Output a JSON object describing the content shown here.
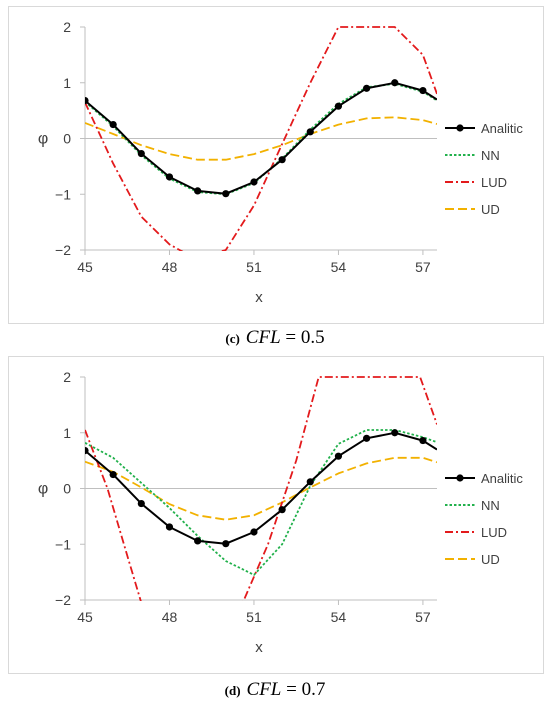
{
  "chart_data": [
    {
      "type": "line",
      "caption": {
        "tag": "(c)",
        "var": "CFL",
        "eq": " = 0.5"
      },
      "xlabel": "x",
      "ylabel": "φ",
      "xlim": [
        45,
        57.5
      ],
      "ylim": [
        -2,
        2
      ],
      "xticks": [
        "45",
        "48",
        "51",
        "54",
        "57"
      ],
      "yticks": [
        "2",
        "1",
        "0",
        "−1",
        "−2"
      ],
      "grid": false,
      "legend": "right",
      "series": [
        {
          "name": "Analitic",
          "color": "#000000",
          "style": "solid-markers",
          "x": [
            45,
            46,
            47,
            48,
            49,
            50,
            51,
            52,
            53,
            54,
            55,
            56,
            57,
            57.5
          ],
          "y": [
            0.68,
            0.25,
            -0.27,
            -0.69,
            -0.94,
            -0.99,
            -0.78,
            -0.38,
            0.12,
            0.58,
            0.9,
            1.0,
            0.86,
            0.7
          ]
        },
        {
          "name": "NN",
          "color": "#22b14c",
          "style": "dotted",
          "x": [
            45,
            46,
            47,
            48,
            49,
            50,
            51,
            52,
            53,
            54,
            55,
            56,
            57,
            57.5
          ],
          "y": [
            0.66,
            0.22,
            -0.3,
            -0.72,
            -0.96,
            -1.0,
            -0.8,
            -0.36,
            0.16,
            0.62,
            0.92,
            0.98,
            0.84,
            0.68
          ]
        },
        {
          "name": "LUD",
          "color": "#e31a1c",
          "style": "dashdot",
          "x": [
            45,
            46,
            47,
            48,
            48.9,
            50,
            51,
            52,
            53,
            54.0,
            56.0,
            57,
            57.5
          ],
          "y": [
            0.65,
            -0.45,
            -1.4,
            -1.9,
            -2.15,
            -2.0,
            -1.2,
            -0.1,
            1.0,
            2.0,
            2.0,
            1.5,
            0.8
          ]
        },
        {
          "name": "UD",
          "color": "#f2b100",
          "style": "dashed",
          "x": [
            45,
            46,
            47,
            48,
            49,
            50,
            51,
            52,
            53,
            54,
            55,
            56,
            57,
            57.5
          ],
          "y": [
            0.28,
            0.08,
            -0.12,
            -0.28,
            -0.38,
            -0.38,
            -0.28,
            -0.12,
            0.08,
            0.25,
            0.36,
            0.38,
            0.33,
            0.26
          ]
        }
      ]
    },
    {
      "type": "line",
      "caption": {
        "tag": "(d)",
        "var": "CFL",
        "eq": " = 0.7"
      },
      "xlabel": "x",
      "ylabel": "φ",
      "xlim": [
        45,
        57.5
      ],
      "ylim": [
        -2,
        2
      ],
      "xticks": [
        "45",
        "48",
        "51",
        "54",
        "57"
      ],
      "yticks": [
        "2",
        "1",
        "0",
        "−1",
        "−2"
      ],
      "grid": false,
      "legend": "right",
      "series": [
        {
          "name": "Analitic",
          "color": "#000000",
          "style": "solid-markers",
          "x": [
            45,
            46,
            47,
            48,
            49,
            50,
            51,
            52,
            53,
            54,
            55,
            56,
            57,
            57.5
          ],
          "y": [
            0.68,
            0.25,
            -0.27,
            -0.69,
            -0.94,
            -0.99,
            -0.78,
            -0.38,
            0.12,
            0.58,
            0.9,
            1.0,
            0.86,
            0.7
          ]
        },
        {
          "name": "NN",
          "color": "#22b14c",
          "style": "dotted",
          "x": [
            45,
            46,
            47,
            48,
            49,
            50,
            51,
            52,
            53,
            54,
            55,
            56,
            57,
            57.5
          ],
          "y": [
            0.82,
            0.55,
            0.1,
            -0.35,
            -0.85,
            -1.3,
            -1.55,
            -1.0,
            0.05,
            0.8,
            1.05,
            1.05,
            0.92,
            0.83
          ]
        },
        {
          "name": "LUD",
          "color": "#e31a1c",
          "style": "dashdot",
          "x": [
            45,
            45.8,
            46.5,
            47.0,
            50.6,
            51.5,
            52.5,
            53.3,
            56.9,
            57.5
          ],
          "y": [
            1.05,
            0.0,
            -1.2,
            -2.05,
            -2.05,
            -1.0,
            0.5,
            2.0,
            2.0,
            1.15
          ]
        },
        {
          "name": "UD",
          "color": "#f2b100",
          "style": "dashed",
          "x": [
            45,
            46,
            47,
            48,
            49,
            50,
            51,
            52,
            53,
            54,
            55,
            56,
            57,
            57.5
          ],
          "y": [
            0.48,
            0.3,
            0.02,
            -0.28,
            -0.48,
            -0.56,
            -0.48,
            -0.25,
            0.02,
            0.27,
            0.45,
            0.55,
            0.55,
            0.47
          ]
        }
      ]
    }
  ]
}
